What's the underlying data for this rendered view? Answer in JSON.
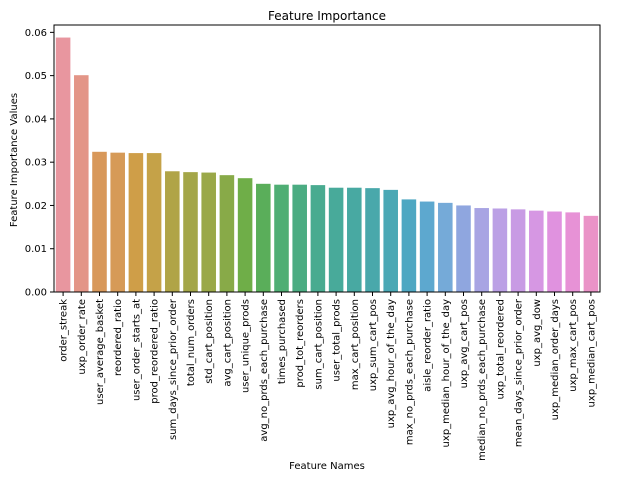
{
  "chart_data": {
    "type": "bar",
    "title": "Feature Importance",
    "xlabel": "Feature Names",
    "ylabel": "Feature Importance Values",
    "ylim": [
      0,
      0.0617
    ],
    "yticks": [
      "0.00",
      "0.01",
      "0.02",
      "0.03",
      "0.04",
      "0.05",
      "0.06"
    ],
    "grid": false,
    "legend": "none",
    "categories": [
      "order_streak",
      "uxp_order_rate",
      "user_average_basket",
      "reordered_ratio",
      "user_order_starts_at",
      "prod_reordered_ratio",
      "sum_days_since_prior_order",
      "total_num_orders",
      "std_cart_position",
      "avg_cart_position",
      "user_unique_prods",
      "avg_no_prds_each_purchase",
      "times_purchased",
      "prod_tot_reorders",
      "sum_cart_position",
      "user_total_prods",
      "max_cart_position",
      "uxp_sum_cart_pos",
      "uxp_avg_hour_of_the_day",
      "max_no_prds_each_purchase",
      "aisle_reorder_ratio",
      "uxp_median_hour_of_the_day",
      "uxp_avg_cart_pos",
      "median_no_prds_each_purchase",
      "uxp_total_reordered",
      "mean_days_since_prior_order",
      "uxp_avg_dow",
      "uxp_median_order_days",
      "uxp_max_cart_pos",
      "uxp_median_cart_pos"
    ],
    "values": [
      0.0588,
      0.0501,
      0.0324,
      0.0322,
      0.0321,
      0.0321,
      0.0279,
      0.0277,
      0.0276,
      0.027,
      0.0263,
      0.025,
      0.0248,
      0.0248,
      0.0247,
      0.0241,
      0.0241,
      0.024,
      0.0236,
      0.0214,
      0.0209,
      0.0206,
      0.02,
      0.0194,
      0.0193,
      0.0191,
      0.0188,
      0.0186,
      0.0184,
      0.0176
    ],
    "colors": [
      "#e8969f",
      "#e39587",
      "#d8985a",
      "#d69a57",
      "#cf9e48",
      "#c5a248",
      "#b0a447",
      "#a4a648",
      "#9aa848",
      "#88aa48",
      "#6fae48",
      "#5aae5a",
      "#4fae74",
      "#4bac82",
      "#49ab90",
      "#48aa9a",
      "#48a9a2",
      "#49a8ab",
      "#4aa8b5",
      "#4ea7c2",
      "#5da8cf",
      "#75aad8",
      "#8fa6df",
      "#a8a4e3",
      "#bba0e5",
      "#c89be4",
      "#d697e3",
      "#e092df",
      "#e792d6",
      "#ea93c7"
    ]
  }
}
